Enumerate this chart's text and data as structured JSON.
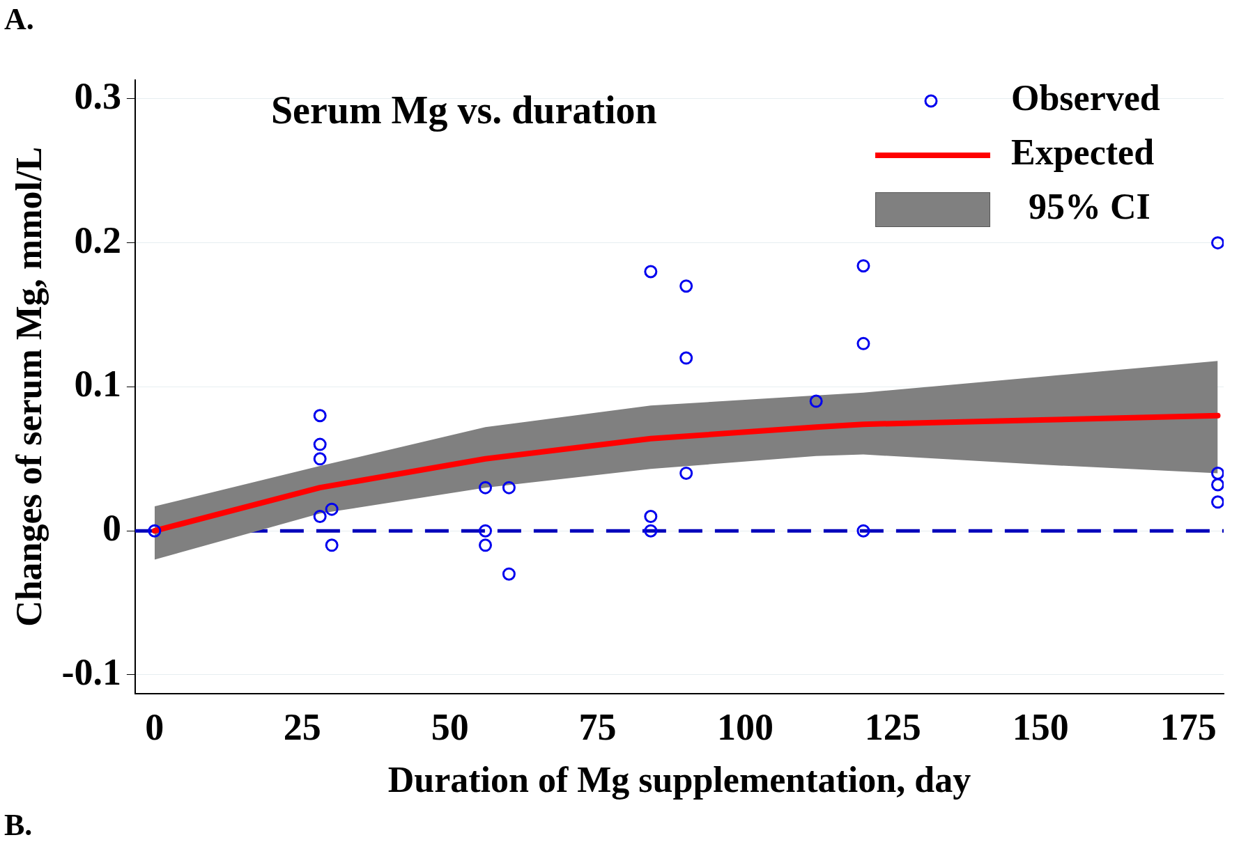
{
  "chart_data": {
    "type": "scatter",
    "title": "Serum Mg vs. duration",
    "xlabel": "Duration of Mg supplementation, day",
    "ylabel": "Changes of serum Mg, mmol/L",
    "annotations": [
      "A.",
      "B.",
      "95% CI"
    ],
    "xlim": [
      -3.3,
      181
    ],
    "ylim": [
      -0.113,
      0.313
    ],
    "xticks": [
      0,
      25,
      50,
      75,
      100,
      125,
      150,
      175
    ],
    "yticks": [
      -0.1,
      0,
      0.1,
      0.2,
      0.3
    ],
    "grid": "y",
    "legend": "top right",
    "series": [
      {
        "name": "Observed",
        "marker": "circle",
        "color": "#0000ee",
        "x": [
          0,
          28,
          28,
          28,
          28,
          30,
          30,
          56,
          56,
          56,
          60,
          60,
          84,
          84,
          84,
          90,
          90,
          90,
          112,
          120,
          120,
          120,
          180,
          180,
          180,
          180
        ],
        "values": [
          0,
          0.08,
          0.06,
          0.05,
          0.01,
          0.015,
          -0.01,
          0.03,
          0,
          -0.01,
          0.03,
          -0.03,
          0.18,
          0.01,
          0,
          0.17,
          0.12,
          0.04,
          0.09,
          0.184,
          0.13,
          0,
          0.2,
          0.04,
          0.032,
          0.02
        ]
      },
      {
        "name": "Expected",
        "type": "line",
        "color": "#ff0000",
        "marker": "none",
        "x": [
          0,
          28,
          56,
          84,
          112,
          120,
          150,
          180
        ],
        "values": [
          0,
          0.03,
          0.05,
          0.064,
          0.072,
          0.074,
          0.077,
          0.08
        ],
        "lower": [
          -0.02,
          0.012,
          0.03,
          0.043,
          0.052,
          0.053,
          0.046,
          0.04
        ],
        "upper": [
          0.017,
          0.045,
          0.072,
          0.087,
          0.094,
          0.096,
          0.107,
          0.118
        ]
      }
    ],
    "ref_lines": [
      {
        "axis": "y",
        "value": 0,
        "color": "#0000bb",
        "line_style": "dashed"
      }
    ]
  }
}
